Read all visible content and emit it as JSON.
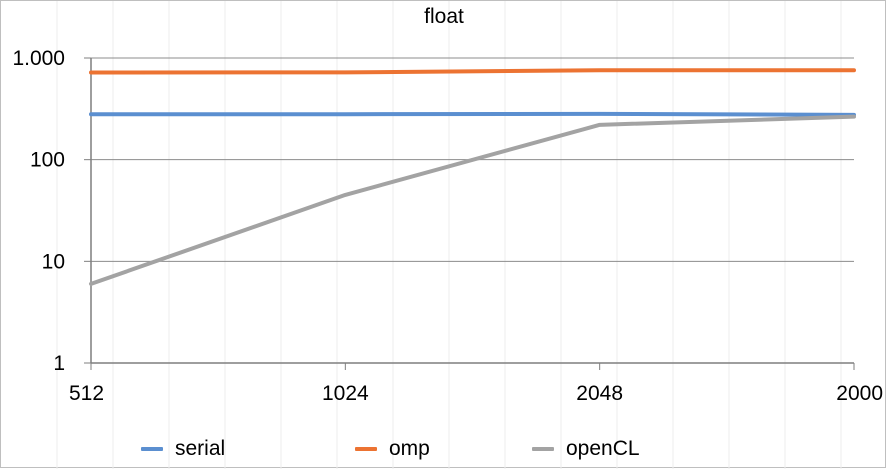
{
  "chart_data": {
    "type": "line",
    "title": "float",
    "xlabel": "",
    "ylabel": "",
    "y_scale": "log",
    "ylim": [
      1,
      1000
    ],
    "grid": true,
    "legend_position": "bottom",
    "categories": [
      "512",
      "1024",
      "2048",
      "2000"
    ],
    "y_tick_labels": [
      "1",
      "10",
      "100",
      "1.000"
    ],
    "y_ticks": [
      1,
      10,
      100,
      1000
    ],
    "series": [
      {
        "name": "serial",
        "color": "#5b8fd0",
        "values": [
          280,
          280,
          282,
          276
        ]
      },
      {
        "name": "omp",
        "color": "#ec7332",
        "values": [
          720,
          722,
          758,
          758
        ]
      },
      {
        "name": "openCL",
        "color": "#a3a3a3",
        "values": [
          6,
          45,
          220,
          265
        ]
      }
    ]
  }
}
